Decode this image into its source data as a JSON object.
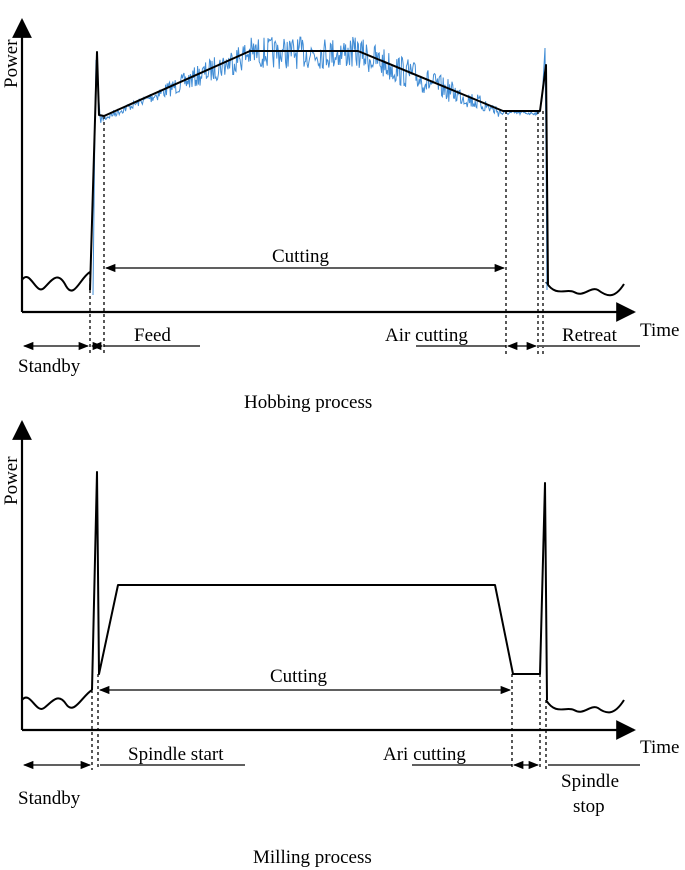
{
  "hobbing": {
    "y_axis_label": "Power",
    "x_axis_label": "Time",
    "cutting_label": "Cutting",
    "standby_label": "Standby",
    "feed_label": "Feed",
    "air_cutting_label": "Air cutting",
    "retreat_label": "Retreat",
    "caption": "Hobbing process",
    "signal_color": "#2b7fd0"
  },
  "milling": {
    "y_axis_label": "Power",
    "x_axis_label": "Time",
    "cutting_label": "Cutting",
    "standby_label": "Standby",
    "spindle_start_label": "Spindle start",
    "air_cutting_label": "Ari cutting",
    "spindle_stop_label_1": "Spindle",
    "spindle_stop_label_2": "stop",
    "caption": "Milling process"
  }
}
